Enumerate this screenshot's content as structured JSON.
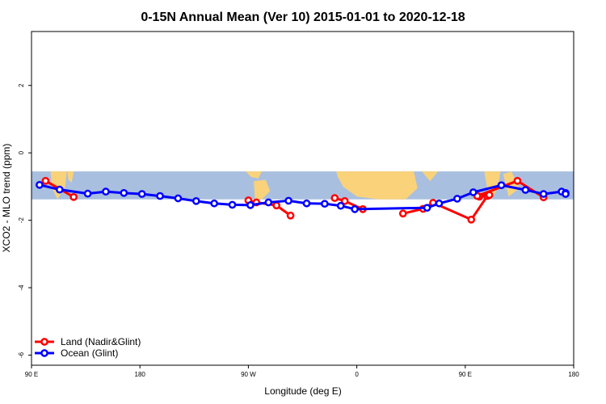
{
  "chart_data": {
    "type": "line",
    "title": "0-15N Annual Mean (Ver 10)   2015-01-01 to 2020-12-18",
    "xlabel": "Longitude (deg E)",
    "ylabel": "XCO2 - MLO trend (ppm)",
    "xlim": [
      -90,
      180
    ],
    "ylim": [
      -6.3,
      3.6
    ],
    "x_ticks": [
      {
        "value": -90,
        "label": "90 E"
      },
      {
        "value": -36,
        "label": "180"
      },
      {
        "value": 18,
        "label": "90 W"
      },
      {
        "value": 72,
        "label": "0"
      },
      {
        "value": 126,
        "label": "90 E"
      },
      {
        "value": 180,
        "label": "180"
      }
    ],
    "y_ticks": [
      {
        "value": 2,
        "label": "2"
      },
      {
        "value": 0,
        "label": "0"
      },
      {
        "value": -2,
        "label": "-2"
      },
      {
        "value": -4,
        "label": "-4"
      },
      {
        "value": -6,
        "label": "-6"
      }
    ],
    "map_band": {
      "y_top": -0.55,
      "y_bottom": -1.38,
      "ocean_color": "#a9bfdf",
      "land_color": "#f9d27a"
    },
    "legend": {
      "position": "bottom-left"
    },
    "series": [
      {
        "name": "Land (Nadir&Glint)",
        "color": "#ff0000",
        "segments": [
          {
            "x": [
              -83,
              -69
            ],
            "y": [
              -0.83,
              -1.31
            ]
          },
          {
            "x": [
              18,
              22,
              32,
              39
            ],
            "y": [
              -1.41,
              -1.47,
              -1.56,
              -1.86
            ]
          },
          {
            "x": [
              61,
              66,
              75
            ],
            "y": [
              -1.34,
              -1.43,
              -1.67
            ]
          },
          {
            "x": [
              95,
              105,
              110,
              129,
              137
            ],
            "y": [
              -1.8,
              -1.66,
              -1.48,
              -1.98,
              -1.28
            ]
          },
          {
            "x": [
              133,
              138
            ],
            "y": [
              -1.3,
              -1.25
            ]
          },
          {
            "x": [
              132,
              152,
              165
            ],
            "y": [
              -1.28,
              -0.83,
              -1.32
            ]
          }
        ]
      },
      {
        "name": "Ocean (Glint)",
        "color": "#0000ff",
        "segments": [
          {
            "x": [
              -86,
              -76,
              -62,
              -53,
              -44,
              -35,
              -26,
              -17,
              -8,
              1,
              10,
              19,
              28,
              38,
              47,
              56,
              64,
              71,
              107,
              113,
              122,
              130,
              144,
              156,
              165,
              174,
              183,
              192
            ],
            "y": [
              -0.95,
              -1.09,
              -1.21,
              -1.15,
              -1.19,
              -1.22,
              -1.28,
              -1.35,
              -1.43,
              -1.5,
              -1.54,
              -1.55,
              -1.47,
              -1.42,
              -1.5,
              -1.51,
              -1.57,
              -1.67,
              -1.63,
              -1.5,
              -1.36,
              -1.17,
              -0.96,
              -1.1,
              -1.22,
              -1.15,
              -1.19,
              -1.22
            ]
          }
        ]
      }
    ]
  }
}
